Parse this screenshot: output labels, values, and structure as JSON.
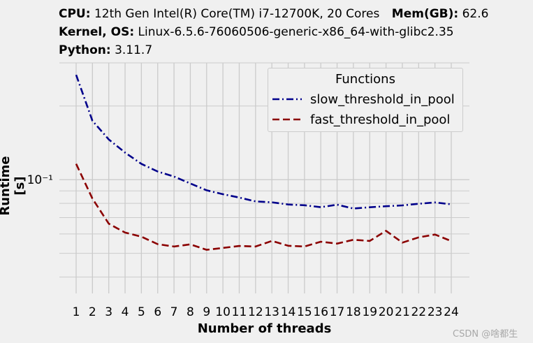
{
  "header": {
    "cpu_key": "CPU:",
    "cpu_val": "12th Gen Intel(R) Core(TM) i7-12700K, 20 Cores",
    "mem_key": "Mem(GB):",
    "mem_val": "62.6",
    "kernel_key": "Kernel, OS:",
    "kernel_val": "Linux-6.5.6-76060506-generic-x86_64-with-glibc2.35",
    "python_key": "Python:",
    "python_val": "3.11.7"
  },
  "watermark": "CSDN @啥都生",
  "chart_data": {
    "type": "line",
    "xlabel": "Number of threads",
    "ylabel": "Runtime [s]",
    "x": [
      1,
      2,
      3,
      4,
      5,
      6,
      7,
      8,
      9,
      10,
      11,
      12,
      13,
      14,
      15,
      16,
      17,
      18,
      19,
      20,
      21,
      22,
      23,
      24
    ],
    "xticks": [
      "1",
      "2",
      "3",
      "4",
      "5",
      "6",
      "7",
      "8",
      "9",
      "10",
      "11",
      "12",
      "13",
      "14",
      "15",
      "16",
      "17",
      "18",
      "19",
      "20",
      "21",
      "22",
      "23",
      "24"
    ],
    "yscale": "log",
    "ylim": [
      0.0343,
      0.3
    ],
    "ytick_label": "10⁻¹",
    "grid": true,
    "legend": {
      "title": "Functions",
      "position": "top-right"
    },
    "series": [
      {
        "name": "slow_threshold_in_pool",
        "style": "dashdot",
        "color": "#00008b",
        "values": [
          0.268,
          0.174,
          0.146,
          0.129,
          0.116,
          0.108,
          0.103,
          0.0965,
          0.0905,
          0.0872,
          0.0845,
          0.0815,
          0.0808,
          0.0792,
          0.0786,
          0.0772,
          0.079,
          0.0762,
          0.0771,
          0.0779,
          0.0785,
          0.0797,
          0.0807,
          0.0793
        ]
      },
      {
        "name": "fast_threshold_in_pool",
        "style": "dashed",
        "color": "#8b0000",
        "values": [
          0.116,
          0.0837,
          0.0661,
          0.0608,
          0.0585,
          0.0545,
          0.0533,
          0.0544,
          0.0517,
          0.0526,
          0.0536,
          0.0533,
          0.0562,
          0.0537,
          0.0533,
          0.0558,
          0.0548,
          0.0568,
          0.0562,
          0.0618,
          0.0553,
          0.0581,
          0.0597,
          0.0561
        ]
      }
    ]
  }
}
